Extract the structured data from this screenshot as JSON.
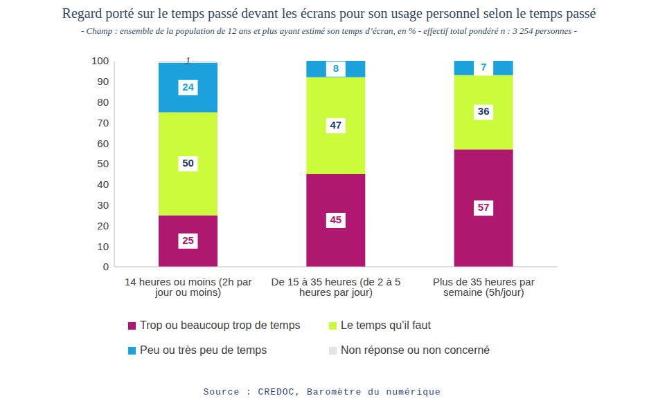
{
  "chart_data": {
    "type": "bar",
    "title": "Regard porté sur le temps passé devant les écrans pour son usage personnel selon le temps passé",
    "subtitle": "- Champ : ensemble de la population de 12 ans et plus ayant estimé son temps d’écran, en % - effectif total pondéré n : 3 254 personnes -",
    "source": "Source : CREDOC, Baromètre du numérique",
    "categories": [
      "14 heures ou moins (2h par jour ou moins)",
      "De 15 à 35 heures (de 2 à 5 heures par jour)",
      "Plus de 35 heures par semaine (5h/jour)"
    ],
    "series": [
      {
        "name": "Trop ou beaucoup trop de temps",
        "color": "#b0186f",
        "values": [
          25,
          45,
          57
        ]
      },
      {
        "name": "Le temps qu’il faut",
        "color": "#ccfa3c",
        "values": [
          50,
          47,
          36
        ]
      },
      {
        "name": "Peu ou très peu de temps",
        "color": "#1ba1dc",
        "values": [
          24,
          8,
          7
        ]
      },
      {
        "name": "Non réponse ou non concerné",
        "color": "#e3e3e3",
        "values": [
          1,
          0,
          0
        ]
      }
    ],
    "ylim": [
      0,
      100
    ],
    "yticks": [
      0,
      10,
      20,
      30,
      40,
      50,
      60,
      70,
      80,
      90,
      100
    ],
    "stacked": true,
    "data_labels": true,
    "grid": false,
    "legend": "bottom"
  }
}
